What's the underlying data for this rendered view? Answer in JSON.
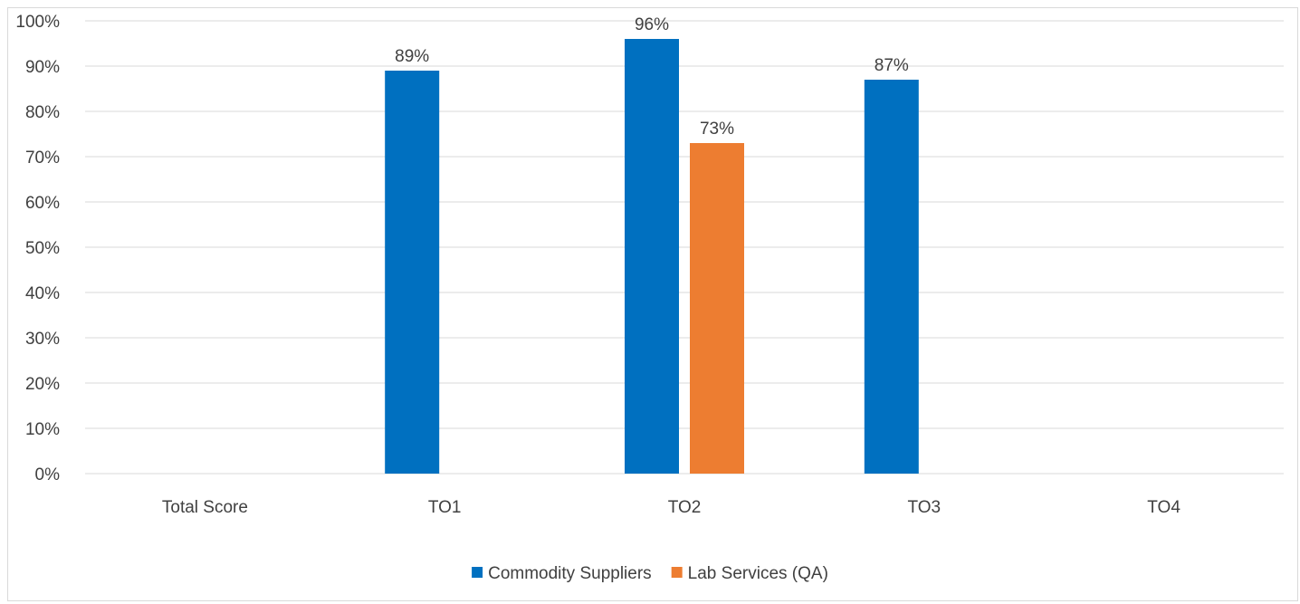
{
  "chart_data": {
    "type": "bar",
    "categories": [
      "Total Score",
      "TO1",
      "TO2",
      "TO3",
      "TO4"
    ],
    "series": [
      {
        "name": "Commodity Suppliers",
        "color": "#0070c0",
        "values": [
          null,
          89,
          96,
          87,
          null
        ],
        "labels": [
          "",
          "89%",
          "96%",
          "87%",
          ""
        ]
      },
      {
        "name": "Lab Services (QA)",
        "color": "#ed7d31",
        "values": [
          null,
          null,
          73,
          null,
          null
        ],
        "labels": [
          "",
          "",
          "73%",
          "",
          ""
        ]
      }
    ],
    "ylim": [
      0,
      100
    ],
    "yticks": [
      0,
      10,
      20,
      30,
      40,
      50,
      60,
      70,
      80,
      90,
      100
    ],
    "ytick_labels": [
      "0%",
      "10%",
      "20%",
      "30%",
      "40%",
      "50%",
      "60%",
      "70%",
      "80%",
      "90%",
      "100%"
    ],
    "gridlines": true,
    "grid_color": "#d9d9d9",
    "legend_position": "bottom"
  }
}
